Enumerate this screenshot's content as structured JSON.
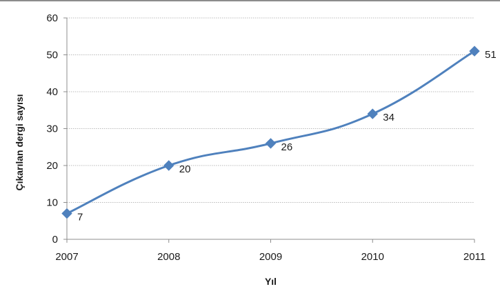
{
  "chart_data": {
    "type": "line",
    "xlabel": "Yıl",
    "ylabel": "Çıkarılan dergi sayısı",
    "categories": [
      "2007",
      "2008",
      "2009",
      "2010",
      "2011"
    ],
    "series": [
      {
        "values": [
          7,
          20,
          26,
          34,
          51
        ],
        "color": "#4f81bd",
        "marker": "diamond"
      }
    ],
    "data_labels": [
      "7",
      "20",
      "26",
      "34",
      "51"
    ],
    "yticks": [
      "0",
      "10",
      "20",
      "30",
      "40",
      "50",
      "60"
    ],
    "ylim": [
      0,
      60
    ],
    "grid": true,
    "smooth": true
  }
}
